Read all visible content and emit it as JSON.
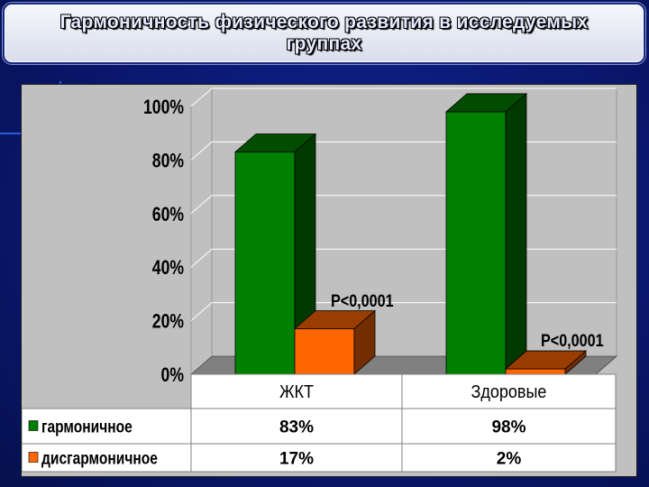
{
  "header": {
    "title_line1": "Гармоничность физического развития в исследуемых",
    "title_line2": "группах"
  },
  "chart_data": {
    "type": "bar",
    "categories": [
      "ЖКТ",
      "Здоровые"
    ],
    "series": [
      {
        "name": "гармоничное",
        "values": [
          83,
          98
        ],
        "labels": [
          "83%",
          "98%"
        ],
        "color": "#008000"
      },
      {
        "name": "дисгармоничное",
        "values": [
          17,
          2
        ],
        "labels": [
          "17%",
          "2%"
        ],
        "color": "#ff6600"
      }
    ],
    "y_ticks": [
      "0%",
      "20%",
      "40%",
      "60%",
      "80%",
      "100%"
    ],
    "ylim": [
      0,
      100
    ],
    "annotations": [
      "P<0,0001",
      "P<0,0001"
    ],
    "grid": true,
    "data_table": true,
    "colors": {
      "plot_bg": "#c0c0c0",
      "wall": "#c0c0c0",
      "floor": "#808080"
    }
  }
}
